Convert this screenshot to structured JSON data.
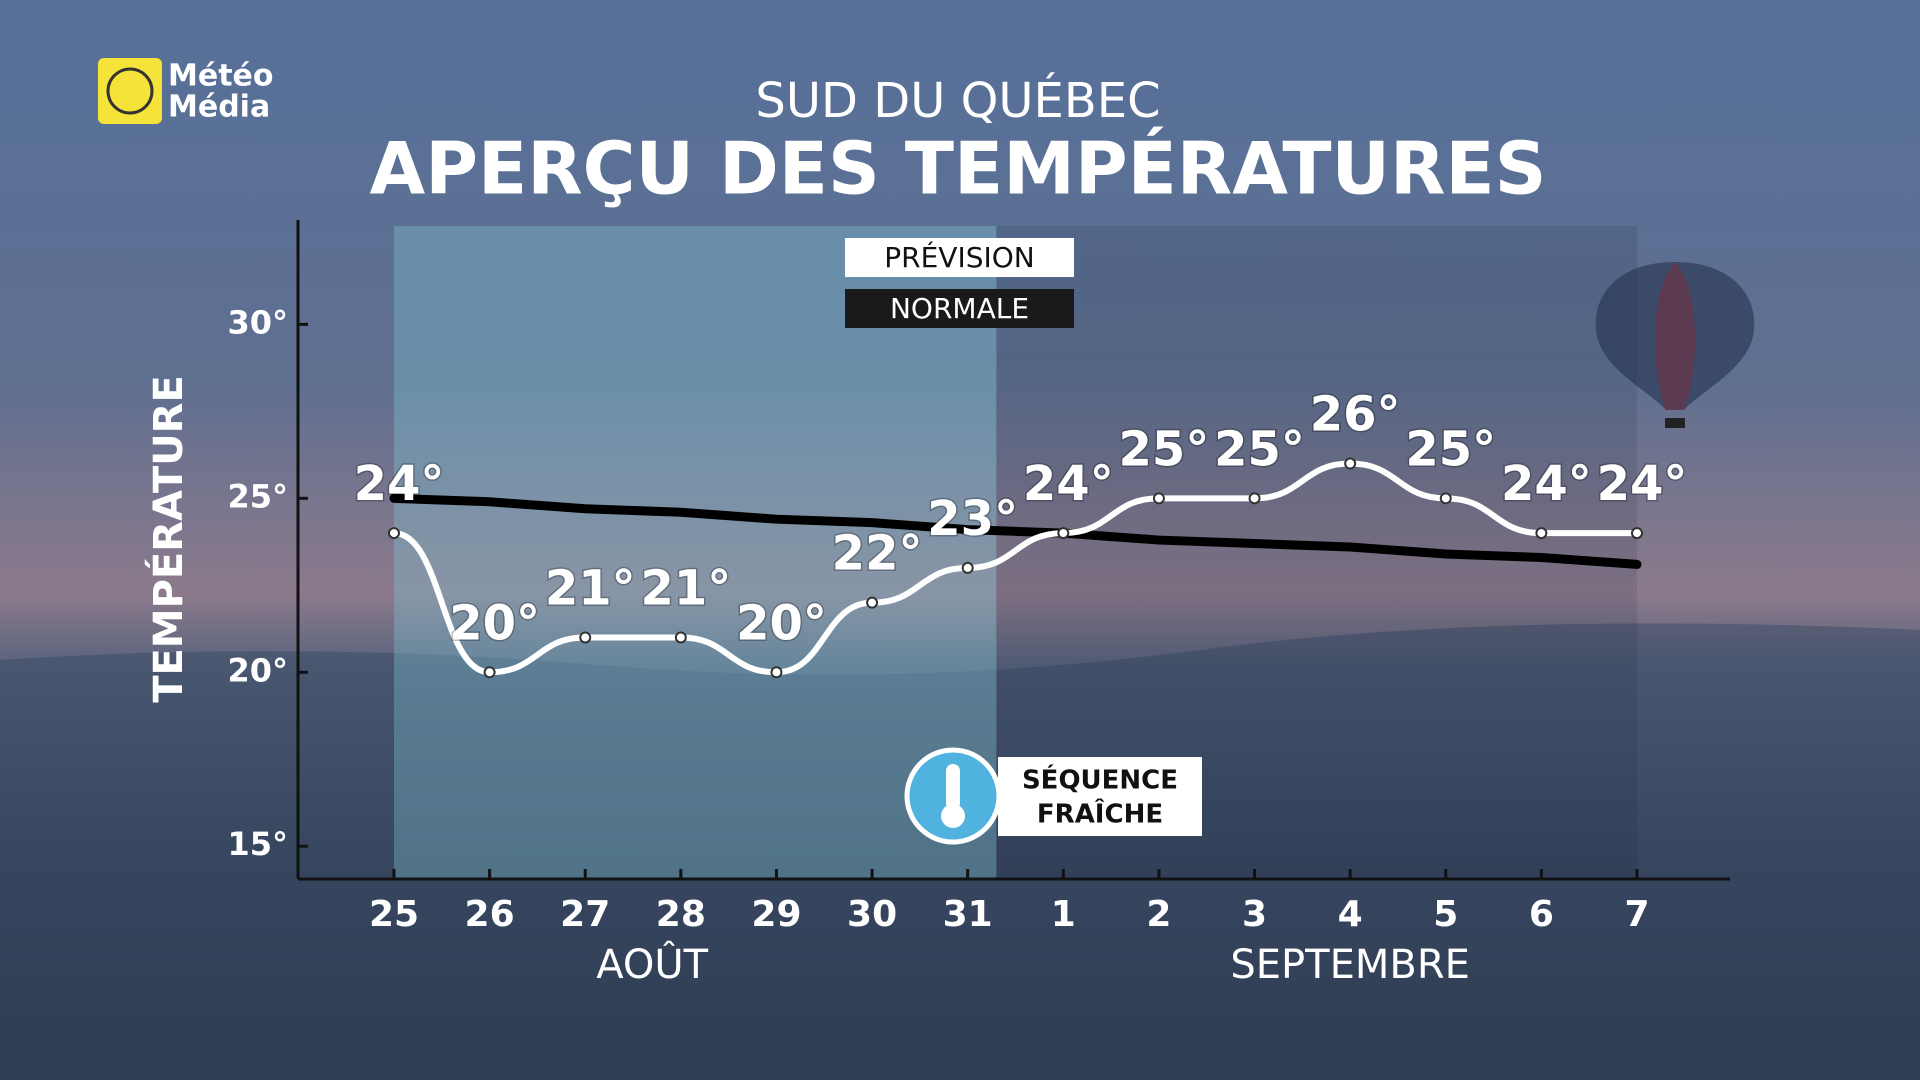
{
  "branding": {
    "lines": [
      "Météo",
      "Média"
    ]
  },
  "chart_data": {
    "type": "line",
    "subtitle": "SUD DU QUÉBEC",
    "title": "APERÇU DES TEMPÉRATURES",
    "y_label": "TEMPÉRATURE",
    "categories": [
      "25",
      "26",
      "27",
      "28",
      "29",
      "30",
      "31",
      "1",
      "2",
      "3",
      "4",
      "5",
      "6",
      "7"
    ],
    "month_labels": [
      "AOÛT",
      "SEPTEMBRE"
    ],
    "series": [
      {
        "name": "PRÉVISION",
        "color": "#ffffff",
        "smooth": true,
        "markers": true,
        "values": [
          24,
          20,
          21,
          21,
          20,
          22,
          23,
          24,
          25,
          25,
          26,
          25,
          24,
          24
        ],
        "value_labels": [
          "24°",
          "20°",
          "21°",
          "21°",
          "20°",
          "22°",
          "23°",
          "24°",
          "25°",
          "25°",
          "26°",
          "25°",
          "24°",
          "24°"
        ]
      },
      {
        "name": "NORMALE",
        "color": "#000000",
        "smooth": false,
        "markers": false,
        "values": [
          25.0,
          24.9,
          24.7,
          24.6,
          24.4,
          24.3,
          24.1,
          24.0,
          23.8,
          23.7,
          23.6,
          23.4,
          23.3,
          23.1
        ]
      }
    ],
    "ylim": [
      14,
      33
    ],
    "yticks": [
      {
        "value": 15,
        "label": "15°"
      },
      {
        "value": 20,
        "label": "20°"
      },
      {
        "value": 25,
        "label": "25°"
      },
      {
        "value": 30,
        "label": "30°"
      }
    ],
    "grid": false,
    "annotation": [
      "SÉQUENCE",
      "FRAÎCHE"
    ]
  }
}
